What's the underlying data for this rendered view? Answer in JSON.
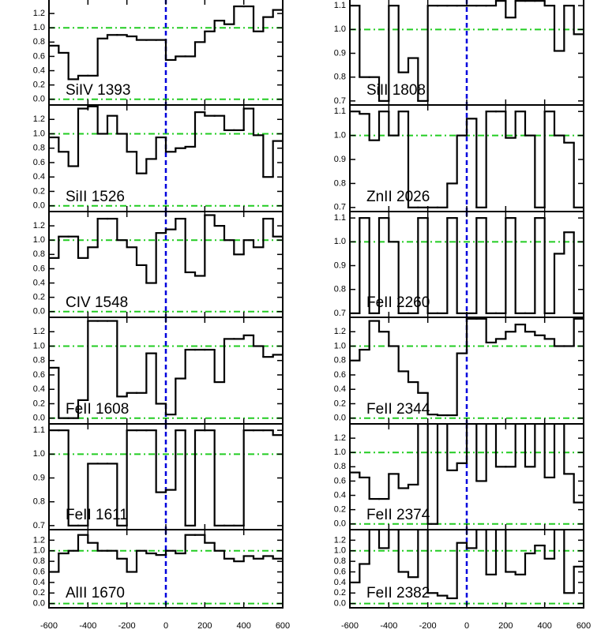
{
  "chart_data": [
    {
      "type": "line",
      "title": "SiIV 1393",
      "x": [
        -575,
        -525,
        -475,
        -425,
        -375,
        -325,
        -275,
        -225,
        -175,
        -125,
        -75,
        -25,
        25,
        75,
        125,
        175,
        225,
        275,
        325,
        375,
        425,
        475,
        525,
        575
      ],
      "values": [
        0.75,
        0.65,
        0.28,
        0.33,
        0.33,
        0.85,
        0.9,
        0.9,
        0.88,
        0.83,
        0.83,
        0.83,
        0.55,
        0.6,
        0.6,
        0.8,
        0.95,
        1.1,
        1.05,
        1.3,
        1.3,
        0.95,
        1.15,
        1.25
      ],
      "color": "#000000",
      "xlim": [
        -600,
        600
      ],
      "xticks": [
        -600,
        -400,
        -200,
        0,
        200,
        400,
        600
      ],
      "ylim": [
        -0.08,
        1.4
      ],
      "yticks": [
        {
          "value": 0,
          "label": "0.0"
        },
        0.2,
        0.4,
        0.6,
        0.8,
        {
          "value": 1,
          "label": "1.0"
        },
        1.2
      ],
      "hlines": [
        0,
        1
      ],
      "hline_color": "#22cc22",
      "vline": 0,
      "vline_color": "#0000dd"
    },
    {
      "type": "line",
      "title": "SiII 1526",
      "x": [
        -575,
        -525,
        -475,
        -425,
        -375,
        -325,
        -275,
        -225,
        -175,
        -125,
        -75,
        -25,
        25,
        75,
        125,
        175,
        225,
        275,
        325,
        375,
        425,
        475,
        525,
        575
      ],
      "values": [
        0.95,
        0.75,
        0.55,
        1.35,
        1.38,
        1.0,
        1.25,
        1.0,
        0.75,
        0.45,
        0.65,
        0.95,
        0.75,
        0.8,
        0.82,
        1.3,
        1.25,
        1.25,
        1.05,
        1.05,
        1.35,
        0.98,
        0.4,
        0.9
      ],
      "color": "#000000",
      "xlim": [
        -600,
        600
      ],
      "xticks": [
        -600,
        -400,
        -200,
        0,
        200,
        400,
        600
      ],
      "ylim": [
        -0.08,
        1.4
      ],
      "yticks": [
        {
          "value": 0,
          "label": "0.0"
        },
        0.2,
        0.4,
        0.6,
        0.8,
        {
          "value": 1,
          "label": "1.0"
        },
        1.2
      ],
      "hlines": [
        0,
        1
      ],
      "hline_color": "#22cc22",
      "vline": 0,
      "vline_color": "#0000dd"
    },
    {
      "type": "line",
      "title": "CIV 1548",
      "x": [
        -575,
        -525,
        -475,
        -425,
        -375,
        -325,
        -275,
        -225,
        -175,
        -125,
        -75,
        -25,
        25,
        75,
        125,
        175,
        225,
        275,
        325,
        375,
        425,
        475,
        525,
        575
      ],
      "values": [
        0.75,
        1.05,
        1.05,
        0.75,
        0.9,
        1.3,
        1.3,
        1.0,
        0.9,
        0.65,
        0.4,
        1.1,
        1.15,
        1.3,
        0.55,
        0.5,
        1.35,
        1.2,
        1.0,
        0.8,
        1.0,
        0.9,
        1.3,
        1.05
      ],
      "color": "#000000",
      "xlim": [
        -600,
        600
      ],
      "xticks": [
        -600,
        -400,
        -200,
        0,
        200,
        400,
        600
      ],
      "ylim": [
        -0.08,
        1.4
      ],
      "yticks": [
        {
          "value": 0,
          "label": "0.0"
        },
        0.2,
        0.4,
        0.6,
        0.8,
        {
          "value": 1,
          "label": "1.0"
        },
        1.2
      ],
      "hlines": [
        0,
        1
      ],
      "hline_color": "#22cc22",
      "vline": 0,
      "vline_color": "#0000dd"
    },
    {
      "type": "line",
      "title": "FeII 1608",
      "x": [
        -575,
        -525,
        -475,
        -425,
        -375,
        -325,
        -275,
        -225,
        -175,
        -125,
        -75,
        -25,
        25,
        75,
        125,
        175,
        225,
        275,
        325,
        375,
        425,
        475,
        525,
        575
      ],
      "values": [
        0.7,
        0.0,
        0.0,
        0.25,
        1.35,
        1.35,
        1.35,
        0.3,
        0.35,
        0.35,
        0.9,
        0.2,
        0.05,
        0.55,
        0.95,
        0.95,
        0.95,
        0.5,
        1.1,
        1.1,
        1.15,
        1.0,
        0.85,
        0.88
      ],
      "color": "#000000",
      "xlim": [
        -600,
        600
      ],
      "xticks": [
        -600,
        -400,
        -200,
        0,
        200,
        400,
        600
      ],
      "ylim": [
        -0.08,
        1.4
      ],
      "yticks": [
        {
          "value": 0,
          "label": "0.0"
        },
        0.2,
        0.4,
        0.6,
        0.8,
        {
          "value": 1,
          "label": "1.0"
        },
        1.2
      ],
      "hlines": [
        0,
        1
      ],
      "hline_color": "#22cc22",
      "vline": 0,
      "vline_color": "#0000dd"
    },
    {
      "type": "line",
      "title": "FeII 1611",
      "x": [
        -575,
        -525,
        -475,
        -425,
        -375,
        -325,
        -275,
        -225,
        -175,
        -125,
        -75,
        -25,
        25,
        75,
        125,
        175,
        225,
        275,
        325,
        375,
        425,
        475,
        525,
        575
      ],
      "values": [
        1.1,
        1.1,
        0.7,
        0.7,
        0.96,
        0.96,
        0.96,
        0.7,
        1.1,
        1.1,
        1.1,
        0.84,
        0.85,
        1.1,
        0.7,
        1.1,
        1.1,
        0.7,
        0.7,
        0.7,
        1.1,
        1.1,
        1.1,
        1.08
      ],
      "color": "#000000",
      "xlim": [
        -600,
        600
      ],
      "xticks": [
        -600,
        -400,
        -200,
        0,
        200,
        400,
        600
      ],
      "ylim": [
        0.683,
        1.127
      ],
      "yticks": [
        0.7,
        0.8,
        0.9,
        {
          "value": 1,
          "label": "1.0"
        },
        1.1
      ],
      "hlines": [
        1
      ],
      "hline_color": "#22cc22",
      "vline": 0,
      "vline_color": "#0000dd"
    },
    {
      "type": "line",
      "title": "AlII 1670",
      "x": [
        -575,
        -525,
        -475,
        -425,
        -375,
        -325,
        -275,
        -225,
        -175,
        -125,
        -75,
        -25,
        25,
        75,
        125,
        175,
        225,
        275,
        325,
        375,
        425,
        475,
        525,
        575
      ],
      "values": [
        0.6,
        0.95,
        1.0,
        1.3,
        1.15,
        1.0,
        1.0,
        0.85,
        0.6,
        1.0,
        0.95,
        0.92,
        1.0,
        0.95,
        1.3,
        1.3,
        1.15,
        1.0,
        0.85,
        0.8,
        0.9,
        0.85,
        0.9,
        0.85
      ],
      "color": "#000000",
      "xlim": [
        -600,
        600
      ],
      "xticks": [
        -600,
        -400,
        -200,
        0,
        200,
        400,
        600
      ],
      "ylim": [
        -0.08,
        1.4
      ],
      "yticks": [
        {
          "value": 0,
          "label": "0.0"
        },
        0.2,
        0.4,
        0.6,
        0.8,
        {
          "value": 1,
          "label": "1.0"
        },
        1.2
      ],
      "hlines": [
        0,
        1
      ],
      "hline_color": "#22cc22",
      "vline": 0,
      "vline_color": "#0000dd"
    },
    {
      "type": "line",
      "title": "SiII 1808",
      "x": [
        -575,
        -525,
        -475,
        -425,
        -375,
        -325,
        -275,
        -225,
        -175,
        -125,
        -75,
        -25,
        25,
        75,
        125,
        175,
        225,
        275,
        325,
        375,
        425,
        475,
        525,
        575
      ],
      "values": [
        1.1,
        0.8,
        0.8,
        0.7,
        1.1,
        0.82,
        0.88,
        0.7,
        1.1,
        1.1,
        1.1,
        1.1,
        1.1,
        1.1,
        1.1,
        1.12,
        1.05,
        1.12,
        1.12,
        1.12,
        1.1,
        0.91,
        1.1,
        0.98
      ],
      "color": "#000000",
      "xlim": [
        -600,
        600
      ],
      "xticks": [
        -600,
        -400,
        -200,
        0,
        200,
        400,
        600
      ],
      "ylim": [
        0.683,
        1.127
      ],
      "yticks": [
        0.7,
        0.8,
        0.9,
        {
          "value": 1,
          "label": "1.0"
        },
        1.1
      ],
      "hlines": [
        1
      ],
      "hline_color": "#22cc22",
      "vline": 0,
      "vline_color": "#0000dd"
    },
    {
      "type": "line",
      "title": "ZnII 2026",
      "x": [
        -575,
        -525,
        -475,
        -425,
        -375,
        -325,
        -275,
        -225,
        -175,
        -125,
        -75,
        -25,
        25,
        75,
        125,
        175,
        225,
        275,
        325,
        375,
        425,
        475,
        525,
        575
      ],
      "values": [
        1.1,
        1.09,
        0.98,
        1.1,
        1.0,
        1.1,
        0.7,
        0.7,
        0.7,
        0.7,
        0.8,
        1.0,
        1.07,
        0.7,
        1.1,
        1.1,
        0.99,
        1.1,
        1.0,
        0.7,
        1.1,
        1.0,
        0.97,
        0.7
      ],
      "color": "#000000",
      "xlim": [
        -600,
        600
      ],
      "xticks": [
        -600,
        -400,
        -200,
        0,
        200,
        400,
        600
      ],
      "ylim": [
        0.683,
        1.127
      ],
      "yticks": [
        0.7,
        0.8,
        0.9,
        {
          "value": 1,
          "label": "1.0"
        },
        1.1
      ],
      "hlines": [
        1
      ],
      "hline_color": "#22cc22",
      "vline": 0,
      "vline_color": "#0000dd"
    },
    {
      "type": "line",
      "title": "FeII 2260",
      "x": [
        -575,
        -525,
        -475,
        -425,
        -375,
        -325,
        -275,
        -225,
        -175,
        -125,
        -75,
        -25,
        25,
        75,
        125,
        175,
        225,
        275,
        325,
        375,
        425,
        475,
        525,
        575
      ],
      "values": [
        0.7,
        1.1,
        0.7,
        1.1,
        1.0,
        0.7,
        0.7,
        1.1,
        0.7,
        0.7,
        1.1,
        0.7,
        0.7,
        1.1,
        0.7,
        0.7,
        1.1,
        0.7,
        0.7,
        1.1,
        0.7,
        0.95,
        1.04,
        0.7
      ],
      "color": "#000000",
      "xlim": [
        -600,
        600
      ],
      "xticks": [
        -600,
        -400,
        -200,
        0,
        200,
        400,
        600
      ],
      "ylim": [
        0.683,
        1.127
      ],
      "yticks": [
        0.7,
        0.8,
        0.9,
        {
          "value": 1,
          "label": "1.0"
        },
        1.1
      ],
      "hlines": [
        1
      ],
      "hline_color": "#22cc22",
      "vline": 0,
      "vline_color": "#0000dd"
    },
    {
      "type": "line",
      "title": "FeII 2344",
      "x": [
        -575,
        -525,
        -475,
        -425,
        -375,
        -325,
        -275,
        -225,
        -175,
        -125,
        -75,
        -25,
        25,
        75,
        125,
        175,
        225,
        275,
        325,
        375,
        425,
        475,
        525,
        575
      ],
      "values": [
        0.8,
        0.95,
        1.35,
        1.2,
        1.0,
        0.65,
        0.5,
        0.35,
        0.05,
        0.04,
        0.04,
        0.9,
        1.38,
        1.38,
        1.05,
        1.1,
        1.2,
        1.3,
        1.2,
        1.15,
        1.1,
        1.0,
        1.0,
        1.38
      ],
      "color": "#000000",
      "xlim": [
        -600,
        600
      ],
      "xticks": [
        -600,
        -400,
        -200,
        0,
        200,
        400,
        600
      ],
      "ylim": [
        -0.08,
        1.4
      ],
      "yticks": [
        {
          "value": 0,
          "label": "0.0"
        },
        0.2,
        0.4,
        0.6,
        0.8,
        {
          "value": 1,
          "label": "1.0"
        },
        1.2
      ],
      "hlines": [
        0,
        1
      ],
      "hline_color": "#22cc22",
      "vline": 0,
      "vline_color": "#0000dd"
    },
    {
      "type": "line",
      "title": "FeII 2374",
      "x": [
        -575,
        -525,
        -475,
        -425,
        -375,
        -325,
        -275,
        -225,
        -175,
        -125,
        -75,
        -25,
        25,
        75,
        125,
        175,
        225,
        275,
        325,
        375,
        425,
        475,
        525,
        575
      ],
      "values": [
        0.72,
        0.65,
        0.35,
        0.35,
        0.7,
        0.5,
        0.55,
        1.4,
        0.0,
        1.4,
        0.75,
        0.85,
        1.4,
        0.6,
        1.4,
        0.8,
        0.8,
        1.4,
        0.8,
        1.4,
        0.65,
        1.4,
        0.7,
        0.3
      ],
      "color": "#000000",
      "xlim": [
        -600,
        600
      ],
      "xticks": [
        -600,
        -400,
        -200,
        0,
        200,
        400,
        600
      ],
      "ylim": [
        -0.08,
        1.4
      ],
      "yticks": [
        {
          "value": 0,
          "label": "0.0"
        },
        0.2,
        0.4,
        0.6,
        0.8,
        {
          "value": 1,
          "label": "1.0"
        },
        1.2
      ],
      "hlines": [
        0,
        1
      ],
      "hline_color": "#22cc22",
      "vline": 0,
      "vline_color": "#0000dd"
    },
    {
      "type": "line",
      "title": "FeII 2382",
      "x": [
        -575,
        -525,
        -475,
        -425,
        -375,
        -325,
        -275,
        -225,
        -175,
        -125,
        -75,
        -25,
        25,
        75,
        125,
        175,
        225,
        275,
        325,
        375,
        425,
        475,
        525,
        575
      ],
      "values": [
        0.4,
        0.75,
        1.4,
        1.05,
        1.4,
        0.6,
        0.5,
        1.4,
        0.2,
        0.15,
        0.1,
        1.15,
        1.05,
        1.4,
        0.55,
        1.4,
        0.6,
        0.55,
        0.95,
        1.1,
        0.85,
        1.4,
        0.2,
        0.7
      ],
      "color": "#000000",
      "xlim": [
        -600,
        600
      ],
      "xticks": [
        -600,
        -400,
        -200,
        0,
        200,
        400,
        600
      ],
      "ylim": [
        -0.08,
        1.4
      ],
      "yticks": [
        {
          "value": 0,
          "label": "0.0"
        },
        0.2,
        0.4,
        0.6,
        0.8,
        {
          "value": 1,
          "label": "1.0"
        },
        1.2
      ],
      "hlines": [
        0,
        1
      ],
      "hline_color": "#22cc22",
      "vline": 0,
      "vline_color": "#0000dd"
    }
  ]
}
